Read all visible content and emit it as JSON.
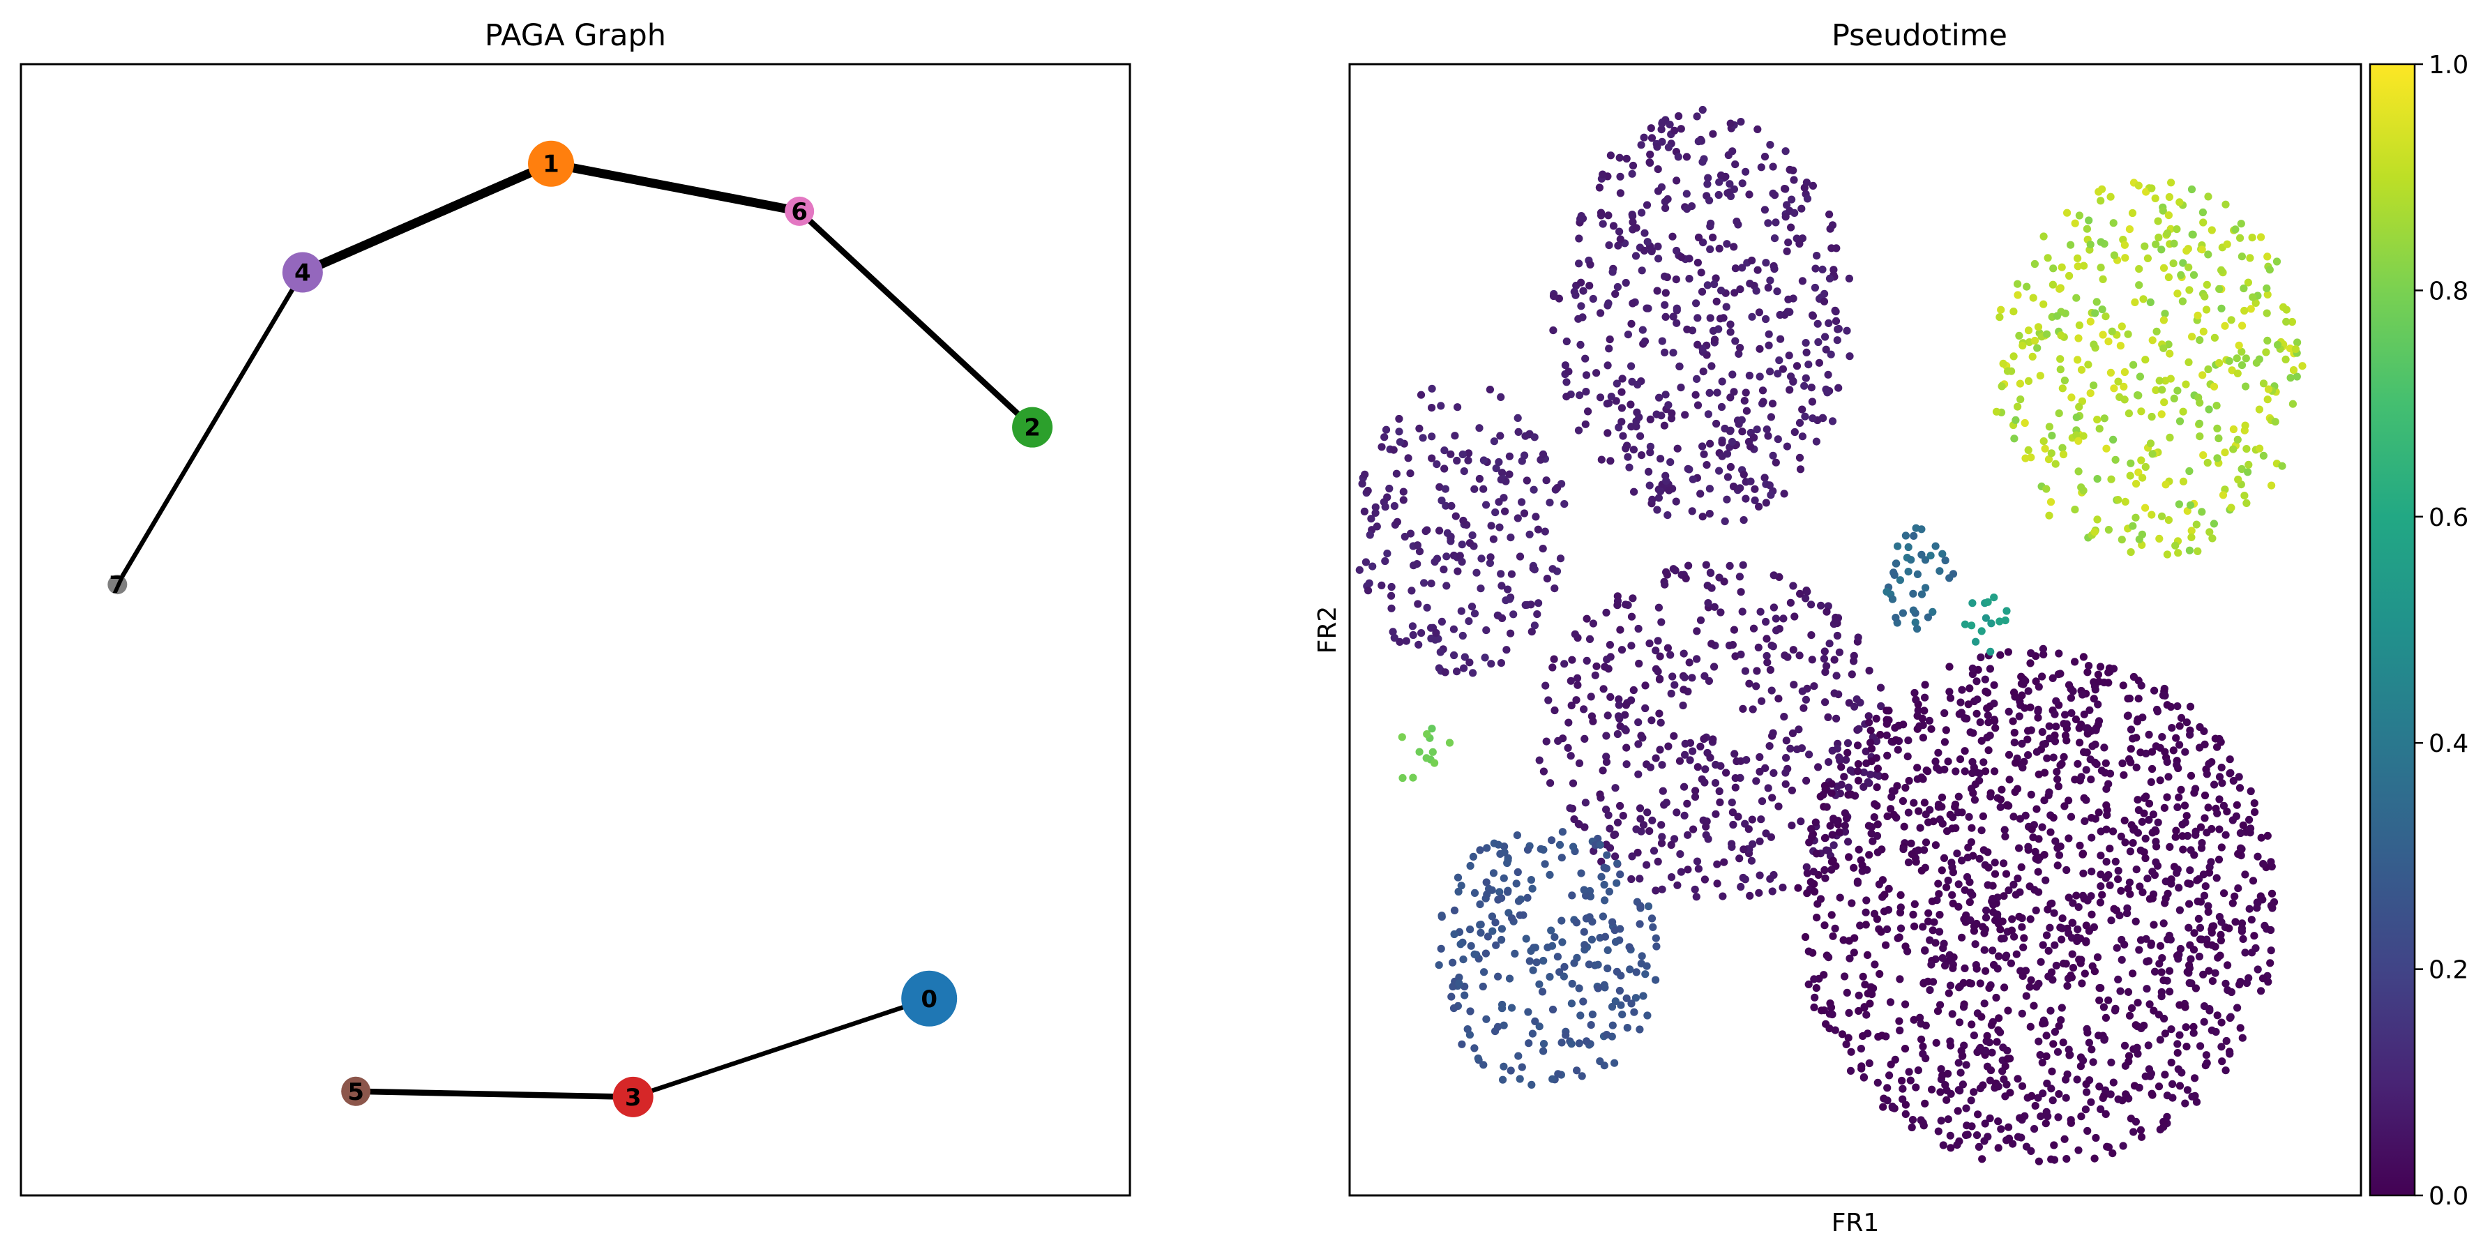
{
  "figure": {
    "left_title": "PAGA Graph",
    "right_title": "Pseudotime",
    "right_xlabel": "FR1",
    "right_ylabel": "FR2"
  },
  "chart_data": [
    {
      "type": "network",
      "title": "PAGA Graph",
      "nodes": [
        {
          "label": "0",
          "x": 0.819,
          "y": 0.174,
          "color": "#1f77b4",
          "size": "largest"
        },
        {
          "label": "1",
          "x": 0.478,
          "y": 0.912,
          "color": "#ff7f0e",
          "size": "large"
        },
        {
          "label": "2",
          "x": 0.912,
          "y": 0.679,
          "color": "#2ca02c",
          "size": "medium"
        },
        {
          "label": "3",
          "x": 0.552,
          "y": 0.087,
          "color": "#d62728",
          "size": "medium"
        },
        {
          "label": "4",
          "x": 0.254,
          "y": 0.816,
          "color": "#9467bd",
          "size": "medium"
        },
        {
          "label": "5",
          "x": 0.302,
          "y": 0.092,
          "color": "#8c564b",
          "size": "small"
        },
        {
          "label": "6",
          "x": 0.702,
          "y": 0.87,
          "color": "#e377c2",
          "size": "small"
        },
        {
          "label": "7",
          "x": 0.087,
          "y": 0.54,
          "color": "#7f7f7f",
          "size": "tiny"
        }
      ],
      "edges": [
        {
          "source": "1",
          "target": "4",
          "weight": 1.0
        },
        {
          "source": "1",
          "target": "6",
          "weight": 1.0
        },
        {
          "source": "6",
          "target": "2",
          "weight": 0.55
        },
        {
          "source": "4",
          "target": "7",
          "weight": 0.35
        },
        {
          "source": "5",
          "target": "3",
          "weight": 0.55
        },
        {
          "source": "3",
          "target": "0",
          "weight": 0.35
        }
      ]
    },
    {
      "type": "scatter",
      "title": "Pseudotime",
      "xlabel": "FR1",
      "ylabel": "FR2",
      "colormap": "viridis",
      "colorbar": {
        "min": 0.0,
        "max": 1.0,
        "ticks": [
          "0.0",
          "0.2",
          "0.4",
          "0.6",
          "0.8",
          "1.0"
        ]
      },
      "clusters": [
        {
          "cx": 0.35,
          "cy": 0.775,
          "rx": 0.15,
          "ry": 0.185,
          "n": 520,
          "value": 0.08,
          "spread": 0.02
        },
        {
          "cx": 0.11,
          "cy": 0.59,
          "rx": 0.105,
          "ry": 0.13,
          "n": 230,
          "value": 0.09,
          "spread": 0.02
        },
        {
          "cx": 0.36,
          "cy": 0.41,
          "rx": 0.175,
          "ry": 0.15,
          "n": 450,
          "value": 0.06,
          "spread": 0.015
        },
        {
          "cx": 0.68,
          "cy": 0.255,
          "rx": 0.24,
          "ry": 0.23,
          "n": 1450,
          "value": 0.01,
          "spread": 0.01
        },
        {
          "cx": 0.195,
          "cy": 0.21,
          "rx": 0.11,
          "ry": 0.12,
          "n": 260,
          "value": 0.26,
          "spread": 0.02
        },
        {
          "cx": 0.79,
          "cy": 0.73,
          "rx": 0.155,
          "ry": 0.17,
          "n": 430,
          "value": 0.88,
          "spread": 0.07
        },
        {
          "cx": 0.56,
          "cy": 0.545,
          "rx": 0.04,
          "ry": 0.045,
          "n": 40,
          "value": 0.35,
          "spread": 0.04
        },
        {
          "cx": 0.635,
          "cy": 0.505,
          "rx": 0.03,
          "ry": 0.025,
          "n": 14,
          "value": 0.55,
          "spread": 0.03
        },
        {
          "cx": 0.075,
          "cy": 0.39,
          "rx": 0.028,
          "ry": 0.042,
          "n": 12,
          "value": 0.78,
          "spread": 0.02
        }
      ]
    }
  ]
}
